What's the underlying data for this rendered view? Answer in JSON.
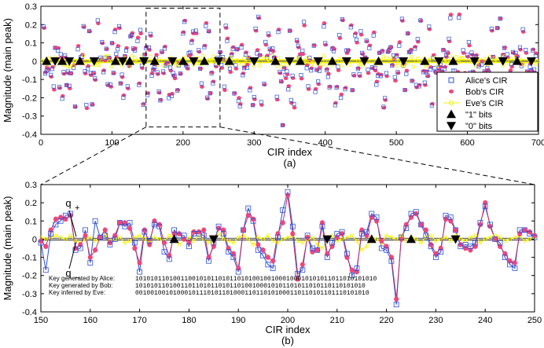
{
  "colors": {
    "alice": "#2b4fd6",
    "bob": "#f0457a",
    "eve": "#f2f200",
    "bits": "#000000",
    "line": "#7a3fa8"
  },
  "chart_data": [
    {
      "type": "scatter",
      "panel": "(a)",
      "caption": "(a)",
      "xlabel": "CIR index",
      "ylabel": "Magnitude (main peak)",
      "xlim": [
        0,
        700
      ],
      "ylim": [
        -0.4,
        0.3
      ],
      "xticks": [
        "0",
        "100",
        "200",
        "300",
        "400",
        "500",
        "600",
        "700"
      ],
      "yticks": [
        "-0.4",
        "-0.3",
        "-0.2",
        "-0.1",
        "0",
        "0.1",
        "0.2",
        "0.3"
      ],
      "legend_position": "bottom-right",
      "legend": [
        "Alice's CIR",
        "Bob's CIR",
        "Eve's CIR",
        "\"1\" bits",
        "\"0\" bits"
      ],
      "zoom_box": {
        "x": [
          148,
          252
        ],
        "y": [
          -0.36,
          0.29
        ]
      },
      "series_description": "700 CIR samples; Alice and Bob closely correlated, Eve near zero",
      "one_bits_x": [
        8,
        30,
        55,
        105,
        125,
        160,
        200,
        230,
        265,
        330,
        365,
        410,
        475,
        540,
        580,
        630,
        670
      ],
      "zero_bits_x": [
        20,
        40,
        75,
        115,
        145,
        185,
        215,
        250,
        300,
        350,
        390,
        430,
        455,
        510,
        560,
        610,
        650,
        690
      ]
    },
    {
      "type": "line",
      "panel": "(b)",
      "caption": "(b)",
      "xlabel": "CIR index",
      "ylabel": "Magnitude (main peak)",
      "xlim": [
        150,
        250
      ],
      "ylim": [
        -0.4,
        0.3
      ],
      "xticks": [
        "150",
        "160",
        "170",
        "180",
        "190",
        "200",
        "210",
        "220",
        "230",
        "240",
        "250"
      ],
      "yticks": [
        "-0.4",
        "-0.3",
        "-0.2",
        "-0.1",
        "0",
        "0.1",
        "0.2",
        "0.3"
      ],
      "q_plus": 0.005,
      "q_minus": -0.005,
      "q_plus_label": "q+",
      "q_minus_label": "q−",
      "x": [
        150,
        151,
        152,
        153,
        154,
        155,
        156,
        157,
        158,
        159,
        160,
        161,
        162,
        163,
        164,
        165,
        166,
        167,
        168,
        169,
        170,
        171,
        172,
        173,
        174,
        175,
        176,
        177,
        178,
        179,
        180,
        181,
        182,
        183,
        184,
        185,
        186,
        187,
        188,
        189,
        190,
        191,
        192,
        193,
        194,
        195,
        196,
        197,
        198,
        199,
        200,
        201,
        202,
        203,
        204,
        205,
        206,
        207,
        208,
        209,
        210,
        211,
        212,
        213,
        214,
        215,
        216,
        217,
        218,
        219,
        220,
        221,
        222,
        223,
        224,
        225,
        226,
        227,
        228,
        229,
        230,
        231,
        232,
        233,
        234,
        235,
        236,
        237,
        238,
        239,
        240,
        241,
        242,
        243,
        244,
        245,
        246,
        247,
        248,
        249,
        250
      ],
      "alice": [
        -0.02,
        -0.17,
        0.03,
        0.08,
        0.1,
        0.13,
        0.14,
        -0.06,
        -0.05,
        0.05,
        -0.13,
        0.1,
        0.01,
        0.02,
        -0.03,
        0.0,
        0.09,
        0.07,
        0.09,
        -0.02,
        -0.18,
        0.04,
        -0.01,
        0.08,
        0.07,
        -0.07,
        -0.11,
        0.05,
        0.02,
        0.02,
        -0.04,
        0.03,
        0.03,
        0.02,
        -0.12,
        -0.02,
        0.07,
        0.03,
        -0.07,
        -0.1,
        -0.18,
        0.05,
        0.17,
        0.1,
        -0.06,
        -0.09,
        -0.14,
        -0.16,
        0.01,
        0.16,
        0.26,
        0.07,
        -0.19,
        -0.17,
        0.02,
        -0.05,
        -0.06,
        0.07,
        -0.1,
        -0.02,
        0.03,
        0.04,
        -0.08,
        -0.2,
        -0.16,
        0.03,
        0.04,
        0.14,
        0.12,
        -0.05,
        -0.06,
        -0.12,
        -0.36,
        0.01,
        0.06,
        0.14,
        0.15,
        0.08,
        0.02,
        -0.04,
        -0.1,
        -0.07,
        0.13,
        0.12,
        0.05,
        -0.04,
        -0.03,
        -0.04,
        -0.02,
        0.09,
        0.18,
        0.08,
        0.0,
        -0.02,
        -0.1,
        -0.14,
        -0.16,
        0.05,
        0.05,
        0.03,
        0.01
      ],
      "bob": [
        -0.01,
        -0.04,
        0.05,
        0.11,
        0.12,
        0.11,
        0.13,
        -0.05,
        -0.03,
        0.02,
        -0.1,
        -0.06,
        0.01,
        0.05,
        -0.02,
        0.02,
        0.09,
        0.09,
        0.06,
        -0.05,
        -0.13,
        0.05,
        -0.03,
        0.1,
        0.08,
        -0.02,
        -0.09,
        0.03,
        0.03,
        0.0,
        -0.02,
        0.04,
        0.04,
        0.05,
        -0.1,
        -0.04,
        0.06,
        0.05,
        -0.05,
        -0.08,
        -0.16,
        0.05,
        0.13,
        0.11,
        -0.03,
        -0.06,
        -0.1,
        -0.12,
        0.03,
        0.09,
        0.24,
        0.03,
        -0.22,
        -0.14,
        0.01,
        -0.07,
        -0.06,
        0.09,
        -0.08,
        -0.04,
        0.01,
        0.03,
        -0.1,
        -0.17,
        -0.18,
        0.05,
        0.02,
        0.12,
        0.1,
        -0.01,
        -0.04,
        -0.1,
        -0.33,
        0.0,
        0.08,
        0.12,
        0.14,
        0.08,
        0.05,
        -0.03,
        -0.08,
        -0.05,
        0.11,
        0.1,
        0.05,
        -0.03,
        -0.05,
        -0.06,
        -0.04,
        0.08,
        0.2,
        0.07,
        0.0,
        -0.04,
        -0.08,
        -0.12,
        -0.13,
        0.03,
        0.05,
        0.04,
        0.02
      ],
      "eve": [
        0.01,
        0.0,
        0.01,
        0.02,
        0.01,
        0.0,
        0.02,
        -0.01,
        -0.02,
        0.0,
        0.01,
        -0.01,
        0.01,
        0.02,
        -0.01,
        0.0,
        0.01,
        -0.02,
        -0.01,
        0.01,
        0.02,
        0.0,
        -0.02,
        0.01,
        0.0,
        -0.01,
        0.02,
        0.01,
        -0.03,
        0.0,
        0.01,
        -0.01,
        0.02,
        0.0,
        -0.02,
        0.01,
        0.03,
        0.0,
        -0.01,
        -0.02,
        0.01,
        0.02,
        0.0,
        -0.03,
        0.01,
        0.0,
        0.02,
        -0.01,
        -0.02,
        0.0,
        0.01,
        0.02,
        -0.01,
        -0.02,
        0.0,
        0.01,
        -0.03,
        -0.05,
        0.0,
        0.02,
        -0.01,
        0.0,
        0.01,
        0.02,
        -0.01,
        -0.06,
        -0.04,
        0.01,
        0.0,
        -0.02,
        0.02,
        0.01,
        0.0,
        0.02,
        -0.01,
        0.01,
        0.0,
        -0.02,
        0.01,
        0.02,
        -0.01,
        0.0,
        0.01,
        -0.01,
        0.02,
        0.0,
        -0.01,
        0.01,
        0.02,
        -0.02,
        0.0,
        0.01,
        0.02,
        0.01,
        -0.01,
        0.0,
        0.01,
        0.02,
        -0.01,
        0.0,
        0.01
      ],
      "one_bits_x": [
        177,
        217,
        225
      ],
      "zero_bits_x": [
        185,
        208,
        234
      ],
      "keys": [
        {
          "label": "Key generated by Alice:",
          "value": "1010101101001100101011010110101001001000100010101011011010101010"
        },
        {
          "label": "Key generated by Bob:",
          "value": "1010101101001101101011010110100100010101101011010110110101010"
        },
        {
          "label": "Key inferred by Eve:",
          "value": "00100100101000101110101101000110110101000110110101101110101010"
        }
      ]
    }
  ]
}
